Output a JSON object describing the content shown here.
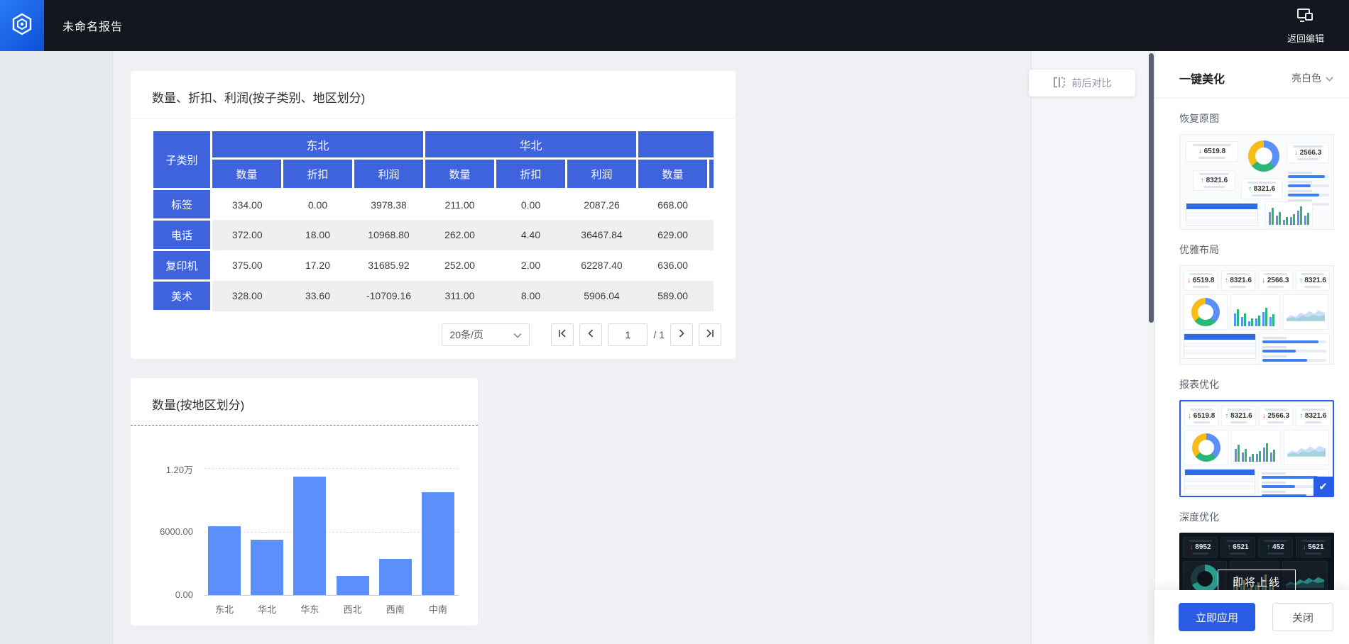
{
  "topbar": {
    "title": "未命名报告",
    "back": {
      "label": "返回编辑"
    }
  },
  "canvas": {
    "compare_label": "前后对比"
  },
  "table_card": {
    "title": "数量、折扣、利润(按子类别、地区划分)",
    "corner": "子类别",
    "groups": [
      {
        "label": "东北",
        "cols": [
          "数量",
          "折扣",
          "利润"
        ]
      },
      {
        "label": "华北",
        "cols": [
          "数量",
          "折扣",
          "利润"
        ]
      },
      {
        "label": "",
        "cols": [
          "数量",
          ""
        ]
      }
    ],
    "rows": [
      {
        "label": "标签",
        "values": [
          "334.00",
          "0.00",
          "3978.38",
          "211.00",
          "0.00",
          "2087.26",
          "668.00"
        ]
      },
      {
        "label": "电话",
        "values": [
          "372.00",
          "18.00",
          "10968.80",
          "262.00",
          "4.40",
          "36467.84",
          "629.00"
        ]
      },
      {
        "label": "复印机",
        "values": [
          "375.00",
          "17.20",
          "31685.92",
          "252.00",
          "2.00",
          "62287.40",
          "636.00"
        ]
      },
      {
        "label": "美术",
        "values": [
          "328.00",
          "33.60",
          "-10709.16",
          "311.00",
          "8.00",
          "5906.04",
          "589.00"
        ]
      }
    ],
    "pagination": {
      "page_size": "20条/页",
      "page": "1",
      "of": "/ 1"
    }
  },
  "chart_card": {
    "title": "数量(按地区划分)"
  },
  "chart_data": {
    "type": "bar",
    "title": "数量(按地区划分)",
    "categories": [
      "东北",
      "华北",
      "华东",
      "西北",
      "西南",
      "中南"
    ],
    "values": [
      6500,
      5200,
      11200,
      1800,
      3400,
      9700
    ],
    "xlabel": "",
    "ylabel": "",
    "ylim": [
      0,
      12000
    ],
    "yticks": [
      {
        "value": 0,
        "label": "0.00"
      },
      {
        "value": 6000,
        "label": "6000.00"
      },
      {
        "value": 12000,
        "label": "1.20万"
      }
    ],
    "bar_color": "#5b8ff9",
    "grid": "horizontal-dashed",
    "legend": "none"
  },
  "panel": {
    "title": "一键美化",
    "theme_select": {
      "value": "亮白色"
    },
    "sections": [
      {
        "id": "restore",
        "label": "恢复原图",
        "variant": "light-free",
        "kpis": [
          {
            "dir": "down",
            "value": "6519.8"
          },
          {
            "dir": "up",
            "value": "8321.6"
          },
          {
            "dir": "down",
            "value": "2566.3"
          },
          {
            "dir": "up",
            "value": "8321.6"
          }
        ],
        "selected": false
      },
      {
        "id": "elegant",
        "label": "优雅布局",
        "variant": "light-grid",
        "kpis": [
          {
            "dir": "down",
            "value": "6519.8"
          },
          {
            "dir": "up",
            "value": "8321.6"
          },
          {
            "dir": "down",
            "value": "2566.3"
          },
          {
            "dir": "up",
            "value": "8321.6"
          }
        ],
        "selected": false
      },
      {
        "id": "report",
        "label": "报表优化",
        "variant": "light-grid",
        "kpis": [
          {
            "dir": "down",
            "value": "6519.8"
          },
          {
            "dir": "up",
            "value": "8321.6"
          },
          {
            "dir": "down",
            "value": "2566.3"
          },
          {
            "dir": "up",
            "value": "8321.6"
          }
        ],
        "selected": true
      },
      {
        "id": "deep",
        "label": "深度优化",
        "variant": "dark",
        "kpis": [
          {
            "dir": "down",
            "value": "8952"
          },
          {
            "dir": "up",
            "value": "6521"
          },
          {
            "dir": "up",
            "value": "452"
          },
          {
            "dir": "down",
            "value": "5621"
          }
        ],
        "overlay": "即将上线",
        "selected": false
      }
    ],
    "footer": {
      "apply": "立即应用",
      "close": "关闭"
    }
  },
  "colors": {
    "accent": "#2b5ce6",
    "table_header": "#3e63dd",
    "bar": "#5b8ff9",
    "topbar": "#14171e",
    "up": "#2bb673",
    "down": "#e6513f"
  }
}
